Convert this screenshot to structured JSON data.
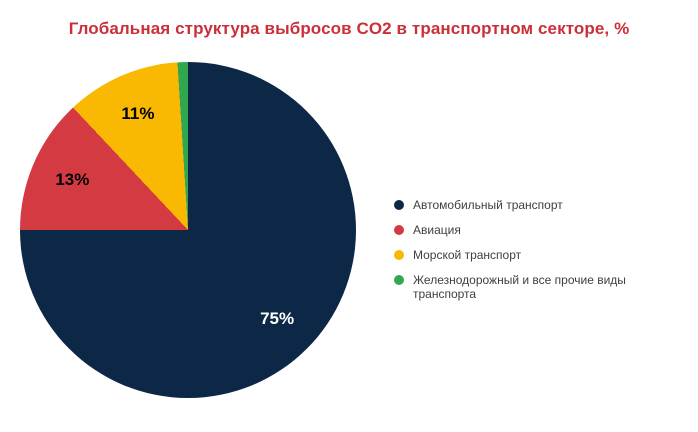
{
  "page": {
    "background_color": "#ffffff"
  },
  "title": {
    "color": "#cb2f38"
  },
  "legend": {
    "position": "right",
    "text_color": "#404040",
    "marker_shape": "circle"
  },
  "chart_data": {
    "type": "pie",
    "title": "Глобальная структура выбросов CO2 в транспортном секторе, %",
    "units": "%",
    "start_angle_deg": 0,
    "direction": "clockwise",
    "label_radius_fraction": 0.75,
    "slices": [
      {
        "name": "Автомобильный транспорт",
        "value": 75,
        "color": "#0d2746",
        "label": "75%",
        "label_color": "#ffffff"
      },
      {
        "name": "Авиация",
        "value": 13,
        "color": "#d43a42",
        "label": "13%",
        "label_color": "#000000"
      },
      {
        "name": "Морской транспорт",
        "value": 11,
        "color": "#f9b903",
        "label": "11%",
        "label_color": "#000000"
      },
      {
        "name": "Железнодорожный и все прочие виды транспорта",
        "value": 1,
        "color": "#2fa84f",
        "label": "",
        "label_color": "#000000"
      }
    ]
  }
}
